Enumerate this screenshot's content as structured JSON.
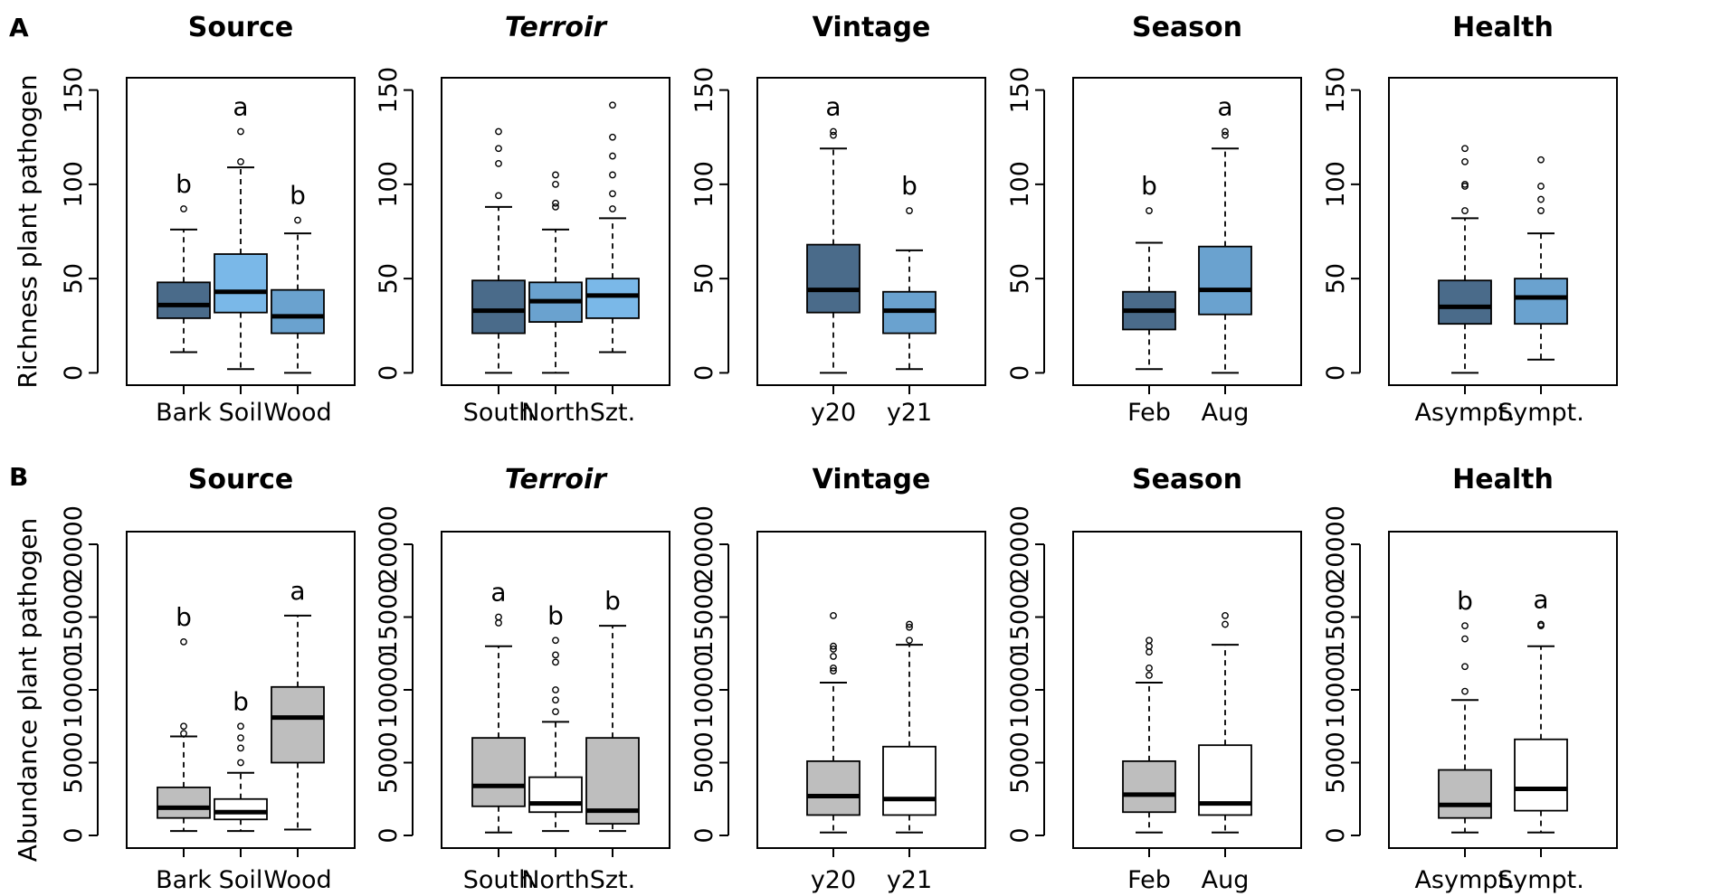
{
  "figure": {
    "panel_letters": [
      "A",
      "B"
    ],
    "ylabels": [
      "Richness plant pathogen",
      "Abundance plant pathogen"
    ]
  },
  "colors": {
    "dark_blue": "#4a6b8a",
    "light_blue": "#7ab8e8",
    "mid_blue": "#6aa2cf",
    "grey": "#bebebe",
    "white": "#ffffff"
  },
  "chart_data": [
    {
      "type": "boxplot",
      "row": "A",
      "title": "Source",
      "italic": false,
      "ylabel": "Richness plant pathogen",
      "ylim": [
        0,
        150
      ],
      "yticks": [
        "0",
        "50",
        "100",
        "150"
      ],
      "categories": [
        "Bark",
        "Soil",
        "Wood"
      ],
      "boxes": [
        {
          "label": "Bark",
          "min": 11,
          "q1": 29,
          "median": 36,
          "q3": 48,
          "max": 76,
          "outliers": [
            87
          ],
          "letter": "b",
          "color": "dark_blue"
        },
        {
          "label": "Soil",
          "min": 2,
          "q1": 32,
          "median": 43,
          "q3": 63,
          "max": 109,
          "outliers": [
            112,
            128
          ],
          "letter": "a",
          "color": "light_blue"
        },
        {
          "label": "Wood",
          "min": 0,
          "q1": 21,
          "median": 30,
          "q3": 44,
          "max": 74,
          "outliers": [
            81
          ],
          "letter": "b",
          "color": "mid_blue"
        }
      ]
    },
    {
      "type": "boxplot",
      "row": "A",
      "title": "Terroir",
      "italic": true,
      "ylabel": "",
      "ylim": [
        0,
        150
      ],
      "yticks": [
        "0",
        "50",
        "100",
        "150"
      ],
      "categories": [
        "South",
        "North",
        "Szt."
      ],
      "boxes": [
        {
          "label": "South",
          "min": 0,
          "q1": 21,
          "median": 33,
          "q3": 49,
          "max": 88,
          "outliers": [
            94,
            111,
            119,
            128
          ],
          "letter": "",
          "color": "dark_blue"
        },
        {
          "label": "North",
          "min": 0,
          "q1": 27,
          "median": 38,
          "q3": 48,
          "max": 76,
          "outliers": [
            88,
            90,
            100,
            105
          ],
          "letter": "",
          "color": "mid_blue"
        },
        {
          "label": "Szt.",
          "min": 11,
          "q1": 29,
          "median": 41,
          "q3": 50,
          "max": 82,
          "outliers": [
            87,
            95,
            105,
            115,
            125,
            142
          ],
          "letter": "",
          "color": "light_blue"
        }
      ]
    },
    {
      "type": "boxplot",
      "row": "A",
      "title": "Vintage",
      "italic": false,
      "ylabel": "",
      "ylim": [
        0,
        150
      ],
      "yticks": [
        "0",
        "50",
        "100",
        "150"
      ],
      "categories": [
        "y20",
        "y21"
      ],
      "boxes": [
        {
          "label": "y20",
          "min": 0,
          "q1": 32,
          "median": 44,
          "q3": 68,
          "max": 119,
          "outliers": [
            126,
            128
          ],
          "letter": "a",
          "color": "dark_blue"
        },
        {
          "label": "y21",
          "min": 2,
          "q1": 21,
          "median": 33,
          "q3": 43,
          "max": 65,
          "outliers": [
            86
          ],
          "letter": "b",
          "color": "mid_blue"
        }
      ]
    },
    {
      "type": "boxplot",
      "row": "A",
      "title": "Season",
      "italic": false,
      "ylabel": "",
      "ylim": [
        0,
        150
      ],
      "yticks": [
        "0",
        "50",
        "100",
        "150"
      ],
      "categories": [
        "Feb",
        "Aug"
      ],
      "boxes": [
        {
          "label": "Feb",
          "min": 2,
          "q1": 23,
          "median": 33,
          "q3": 43,
          "max": 69,
          "outliers": [
            86
          ],
          "letter": "b",
          "color": "dark_blue"
        },
        {
          "label": "Aug",
          "min": 0,
          "q1": 31,
          "median": 44,
          "q3": 67,
          "max": 119,
          "outliers": [
            126,
            128
          ],
          "letter": "a",
          "color": "mid_blue"
        }
      ]
    },
    {
      "type": "boxplot",
      "row": "A",
      "title": "Health",
      "italic": false,
      "ylabel": "",
      "ylim": [
        0,
        150
      ],
      "yticks": [
        "0",
        "50",
        "100",
        "150"
      ],
      "categories": [
        "Asympt.",
        "Sympt."
      ],
      "boxes": [
        {
          "label": "Asympt.",
          "min": 0,
          "q1": 26,
          "median": 35,
          "q3": 49,
          "max": 82,
          "outliers": [
            86,
            99,
            100,
            112,
            119
          ],
          "letter": "",
          "color": "dark_blue"
        },
        {
          "label": "Sympt.",
          "min": 7,
          "q1": 26,
          "median": 40,
          "q3": 50,
          "max": 74,
          "outliers": [
            86,
            92,
            99,
            113
          ],
          "letter": "",
          "color": "mid_blue"
        }
      ]
    },
    {
      "type": "boxplot",
      "row": "B",
      "title": "Source",
      "italic": false,
      "ylabel": "Abundance plant pathogen",
      "ylim": [
        0,
        20000
      ],
      "yticks": [
        "0",
        "5000",
        "10000",
        "15000",
        "20000"
      ],
      "categories": [
        "Bark",
        "Soil",
        "Wood"
      ],
      "boxes": [
        {
          "label": "Bark",
          "min": 300,
          "q1": 1200,
          "median": 1900,
          "q3": 3300,
          "max": 6800,
          "outliers": [
            7000,
            7500,
            13300
          ],
          "letter": "b",
          "color": "grey"
        },
        {
          "label": "Soil",
          "min": 300,
          "q1": 1100,
          "median": 1600,
          "q3": 2500,
          "max": 4300,
          "outliers": [
            5000,
            6000,
            6700,
            7500
          ],
          "letter": "b",
          "color": "white"
        },
        {
          "label": "Wood",
          "min": 400,
          "q1": 5000,
          "median": 8100,
          "q3": 10200,
          "max": 15100,
          "outliers": [],
          "letter": "a",
          "color": "grey"
        }
      ]
    },
    {
      "type": "boxplot",
      "row": "B",
      "title": "Terroir",
      "italic": true,
      "ylabel": "",
      "ylim": [
        0,
        20000
      ],
      "yticks": [
        "0",
        "5000",
        "10000",
        "15000",
        "20000"
      ],
      "categories": [
        "South",
        "North",
        "Szt."
      ],
      "boxes": [
        {
          "label": "South",
          "min": 200,
          "q1": 2000,
          "median": 3400,
          "q3": 6700,
          "max": 13000,
          "outliers": [
            14600,
            15000
          ],
          "letter": "a",
          "color": "grey"
        },
        {
          "label": "North",
          "min": 300,
          "q1": 1600,
          "median": 2200,
          "q3": 4000,
          "max": 7800,
          "outliers": [
            8500,
            9300,
            10000,
            11900,
            12400,
            13400
          ],
          "letter": "b",
          "color": "white"
        },
        {
          "label": "Szt.",
          "min": 300,
          "q1": 800,
          "median": 1700,
          "q3": 6700,
          "max": 14400,
          "outliers": [],
          "letter": "b",
          "color": "grey"
        }
      ]
    },
    {
      "type": "boxplot",
      "row": "B",
      "title": "Vintage",
      "italic": false,
      "ylabel": "",
      "ylim": [
        0,
        20000
      ],
      "yticks": [
        "0",
        "5000",
        "10000",
        "15000",
        "20000"
      ],
      "categories": [
        "y20",
        "y21"
      ],
      "boxes": [
        {
          "label": "y20",
          "min": 200,
          "q1": 1400,
          "median": 2700,
          "q3": 5100,
          "max": 10500,
          "outliers": [
            11300,
            11500,
            12300,
            12800,
            13000,
            15100
          ],
          "letter": "",
          "color": "grey"
        },
        {
          "label": "y21",
          "min": 200,
          "q1": 1400,
          "median": 2500,
          "q3": 6100,
          "max": 13100,
          "outliers": [
            13400,
            14300,
            14500
          ],
          "letter": "",
          "color": "white"
        }
      ]
    },
    {
      "type": "boxplot",
      "row": "B",
      "title": "Season",
      "italic": false,
      "ylabel": "",
      "ylim": [
        0,
        20000
      ],
      "yticks": [
        "0",
        "5000",
        "10000",
        "15000",
        "20000"
      ],
      "categories": [
        "Feb",
        "Aug"
      ],
      "boxes": [
        {
          "label": "Feb",
          "min": 200,
          "q1": 1600,
          "median": 2800,
          "q3": 5100,
          "max": 10500,
          "outliers": [
            11000,
            11500,
            12600,
            13000,
            13400
          ],
          "letter": "",
          "color": "grey"
        },
        {
          "label": "Aug",
          "min": 200,
          "q1": 1400,
          "median": 2200,
          "q3": 6200,
          "max": 13100,
          "outliers": [
            14500,
            15100
          ],
          "letter": "",
          "color": "white"
        }
      ]
    },
    {
      "type": "boxplot",
      "row": "B",
      "title": "Health",
      "italic": false,
      "ylabel": "",
      "ylim": [
        0,
        20000
      ],
      "yticks": [
        "0",
        "5000",
        "10000",
        "15000",
        "20000"
      ],
      "categories": [
        "Asympt.",
        "Sympt."
      ],
      "boxes": [
        {
          "label": "Asympt.",
          "min": 200,
          "q1": 1200,
          "median": 2100,
          "q3": 4500,
          "max": 9300,
          "outliers": [
            9900,
            11600,
            13500,
            14400
          ],
          "letter": "b",
          "color": "grey"
        },
        {
          "label": "Sympt.",
          "min": 200,
          "q1": 1700,
          "median": 3200,
          "q3": 6600,
          "max": 13000,
          "outliers": [
            14400,
            14500
          ],
          "letter": "a",
          "color": "white"
        }
      ]
    }
  ]
}
